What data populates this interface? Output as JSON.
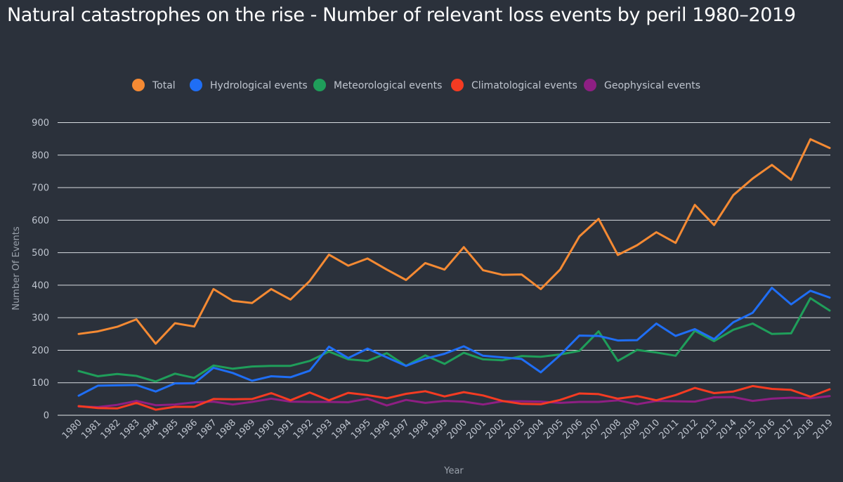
{
  "chart_data": {
    "type": "line",
    "title": "Natural catastrophes on the rise - Number of relevant loss events by peril 1980–2019",
    "xlabel": "Year",
    "ylabel": "Number Of Events",
    "ylim": [
      0,
      900
    ],
    "yticks": [
      "0",
      "100",
      "200",
      "300",
      "400",
      "500",
      "600",
      "700",
      "800",
      "900"
    ],
    "grid": true,
    "legend_position": "top",
    "categories": [
      "1980",
      "1981",
      "1982",
      "1983",
      "1984",
      "1985",
      "1986",
      "1987",
      "1988",
      "1989",
      "1990",
      "1991",
      "1992",
      "1993",
      "1994",
      "1995",
      "1996",
      "1997",
      "1998",
      "1999",
      "2000",
      "2001",
      "2002",
      "2003",
      "2004",
      "2005",
      "2006",
      "2007",
      "2008",
      "2009",
      "2010",
      "2011",
      "2012",
      "2013",
      "2014",
      "2015",
      "2016",
      "2017",
      "2018",
      "2019"
    ],
    "series": [
      {
        "name": "Total",
        "color": "#f58a33",
        "values": [
          250,
          258,
          272,
          295,
          220,
          283,
          273,
          388,
          352,
          345,
          388,
          356,
          413,
          494,
          460,
          482,
          448,
          416,
          468,
          448,
          517,
          446,
          432,
          433,
          388,
          448,
          550,
          604,
          493,
          523,
          563,
          530,
          647,
          585,
          677,
          728,
          770,
          724,
          849,
          822
        ]
      },
      {
        "name": "Hydrological events",
        "color": "#1f6ef5",
        "values": [
          60,
          91,
          92,
          93,
          73,
          98,
          98,
          146,
          130,
          106,
          120,
          117,
          137,
          211,
          176,
          205,
          178,
          152,
          174,
          189,
          212,
          183,
          178,
          173,
          132,
          185,
          245,
          244,
          230,
          231,
          282,
          244,
          265,
          234,
          286,
          315,
          392,
          341,
          383,
          362
        ]
      },
      {
        "name": "Meteorological events",
        "color": "#1f9e5a",
        "values": [
          136,
          120,
          127,
          121,
          104,
          128,
          115,
          153,
          143,
          150,
          152,
          152,
          167,
          196,
          172,
          167,
          191,
          152,
          184,
          158,
          192,
          172,
          169,
          182,
          180,
          187,
          198,
          258,
          167,
          201,
          193,
          183,
          260,
          228,
          263,
          282,
          250,
          252,
          360,
          322
        ]
      },
      {
        "name": "Climatological events",
        "color": "#f53b22",
        "values": [
          28,
          22,
          21,
          38,
          17,
          26,
          26,
          50,
          49,
          50,
          68,
          46,
          70,
          46,
          69,
          62,
          52,
          66,
          74,
          58,
          71,
          61,
          44,
          35,
          34,
          47,
          67,
          65,
          51,
          59,
          46,
          62,
          84,
          68,
          73,
          90,
          81,
          78,
          57,
          80
        ]
      },
      {
        "name": "Geophysical events",
        "color": "#8e1f83",
        "values": [
          27,
          25,
          32,
          44,
          31,
          33,
          40,
          42,
          33,
          41,
          51,
          42,
          41,
          41,
          40,
          51,
          30,
          47,
          38,
          44,
          42,
          33,
          43,
          43,
          42,
          38,
          41,
          41,
          46,
          34,
          44,
          43,
          42,
          55,
          56,
          44,
          51,
          54,
          52,
          59
        ]
      }
    ]
  }
}
